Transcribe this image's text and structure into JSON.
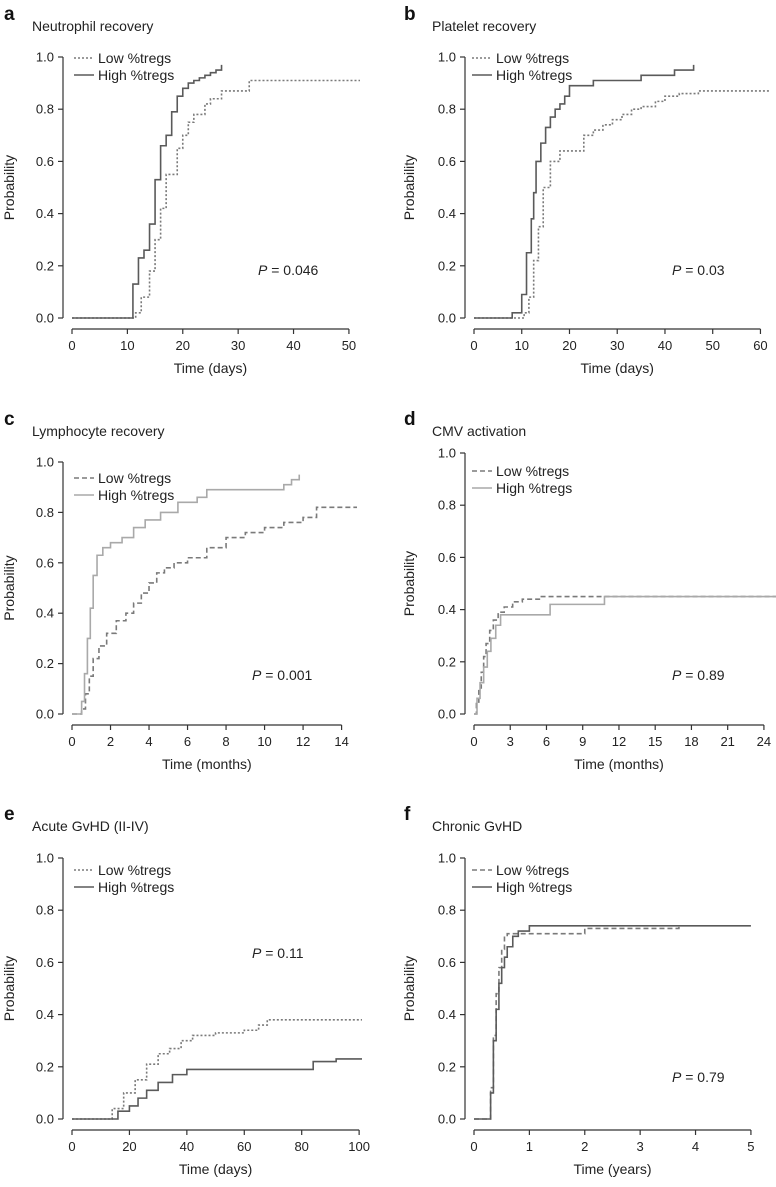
{
  "figure": {
    "y_axis_label": "Probability",
    "p_prefix": "P",
    "p_sep": " = "
  },
  "colors": {
    "low": "#7a7a7a",
    "high": "#5a5a5a",
    "high_light": "#a9a9a9",
    "axis": "#333333"
  },
  "chart_data": [
    {
      "letter": "a",
      "type": "line",
      "title": "Neutrophil recovery",
      "xlabel": "Time (days)",
      "ylabel": "Probability",
      "xlim": [
        0,
        52
      ],
      "ylim": [
        0,
        1
      ],
      "xticks": [
        0,
        10,
        20,
        30,
        40,
        50
      ],
      "yticks": [
        "0.0",
        "0.2",
        "0.4",
        "0.6",
        "0.8",
        "1.0"
      ],
      "p_value": "0.046",
      "series": [
        {
          "name": "Low %tregs",
          "style": "dotted",
          "color": "low",
          "x": [
            0,
            11.5,
            12.5,
            14,
            15,
            16,
            17,
            19,
            20,
            21,
            22,
            24,
            25,
            27,
            32,
            52
          ],
          "y": [
            0,
            0.02,
            0.08,
            0.18,
            0.3,
            0.42,
            0.55,
            0.65,
            0.7,
            0.75,
            0.78,
            0.82,
            0.84,
            0.87,
            0.91,
            0.91
          ]
        },
        {
          "name": "High %tregs",
          "style": "solid",
          "color": "high",
          "x": [
            0,
            11,
            12,
            13,
            14,
            15,
            16,
            17,
            18,
            19,
            20,
            21,
            22,
            23,
            24,
            25,
            26,
            27
          ],
          "y": [
            0,
            0.13,
            0.23,
            0.26,
            0.36,
            0.53,
            0.66,
            0.7,
            0.79,
            0.85,
            0.88,
            0.9,
            0.91,
            0.92,
            0.93,
            0.94,
            0.95,
            0.97
          ]
        }
      ]
    },
    {
      "letter": "b",
      "type": "line",
      "title": "Platelet recovery",
      "xlabel": "Time (days)",
      "ylabel": "Probability",
      "xlim": [
        0,
        62
      ],
      "ylim": [
        0,
        1
      ],
      "xticks": [
        0,
        10,
        20,
        30,
        40,
        50,
        60
      ],
      "yticks": [
        "0.0",
        "0.2",
        "0.4",
        "0.6",
        "0.8",
        "1.0"
      ],
      "p_value": "0.03",
      "series": [
        {
          "name": "Low %tregs",
          "style": "dotted",
          "color": "low",
          "x": [
            0,
            10.5,
            11.5,
            12.5,
            13.5,
            14.5,
            16,
            18,
            23,
            25,
            27,
            29,
            31,
            33,
            35,
            38,
            40,
            43,
            47,
            62
          ],
          "y": [
            0,
            0.02,
            0.08,
            0.22,
            0.35,
            0.5,
            0.6,
            0.64,
            0.7,
            0.72,
            0.74,
            0.76,
            0.78,
            0.8,
            0.81,
            0.83,
            0.85,
            0.86,
            0.87,
            0.87
          ]
        },
        {
          "name": "High %tregs",
          "style": "solid",
          "color": "high",
          "x": [
            0,
            8,
            10,
            11,
            12,
            12.5,
            13,
            14,
            15,
            16,
            17,
            18,
            19,
            20,
            25,
            35,
            42,
            46
          ],
          "y": [
            0,
            0.02,
            0.09,
            0.25,
            0.38,
            0.48,
            0.6,
            0.67,
            0.73,
            0.77,
            0.8,
            0.82,
            0.85,
            0.89,
            0.91,
            0.93,
            0.95,
            0.97
          ]
        }
      ]
    },
    {
      "letter": "c",
      "type": "line",
      "title": "Lymphocyte recovery",
      "xlabel": "Time (months)",
      "ylabel": "Probability",
      "xlim": [
        0,
        14.8
      ],
      "ylim": [
        0,
        1
      ],
      "xticks": [
        0,
        2,
        4,
        6,
        8,
        10,
        12,
        14
      ],
      "yticks": [
        "0.0",
        "0.2",
        "0.4",
        "0.6",
        "0.8",
        "1.0"
      ],
      "p_value": "0.001",
      "series": [
        {
          "name": "Low %tregs",
          "style": "dashed",
          "color": "low",
          "x": [
            0,
            0.5,
            0.7,
            0.9,
            1.1,
            1.4,
            1.8,
            2.3,
            2.8,
            3.2,
            3.6,
            4.0,
            4.4,
            4.8,
            5.3,
            6.0,
            7.0,
            8.0,
            9.0,
            10.0,
            11.0,
            12.0,
            12.7,
            14.8
          ],
          "y": [
            0,
            0.02,
            0.08,
            0.15,
            0.22,
            0.27,
            0.32,
            0.37,
            0.4,
            0.44,
            0.48,
            0.52,
            0.56,
            0.58,
            0.6,
            0.62,
            0.66,
            0.7,
            0.72,
            0.74,
            0.76,
            0.78,
            0.82,
            0.82
          ]
        },
        {
          "name": "High %tregs",
          "style": "solid",
          "color": "high_light",
          "x": [
            0,
            0.5,
            0.65,
            0.8,
            0.95,
            1.1,
            1.3,
            1.6,
            2.0,
            2.6,
            3.2,
            3.8,
            4.6,
            5.5,
            6.5,
            7.0,
            11.0,
            11.4,
            11.8
          ],
          "y": [
            0,
            0.05,
            0.16,
            0.3,
            0.42,
            0.55,
            0.63,
            0.66,
            0.68,
            0.7,
            0.74,
            0.77,
            0.8,
            0.84,
            0.86,
            0.89,
            0.91,
            0.93,
            0.95
          ]
        }
      ]
    },
    {
      "letter": "d",
      "type": "line",
      "title": "CMV activation",
      "xlabel": "Time (months)",
      "ylabel": "Probability",
      "xlim": [
        0,
        25
      ],
      "ylim": [
        0,
        1
      ],
      "xticks": [
        0,
        3,
        6,
        9,
        12,
        15,
        18,
        21,
        24
      ],
      "yticks": [
        "0.0",
        "0.2",
        "0.4",
        "0.6",
        "0.8",
        "1.0"
      ],
      "p_value": "0.89",
      "series": [
        {
          "name": "Low %tregs",
          "style": "dashed",
          "color": "low",
          "x": [
            0,
            0.2,
            0.4,
            0.6,
            0.8,
            1.0,
            1.3,
            1.6,
            2.0,
            2.5,
            3.2,
            4.0,
            5.5,
            25
          ],
          "y": [
            0,
            0.04,
            0.1,
            0.16,
            0.22,
            0.27,
            0.32,
            0.36,
            0.39,
            0.41,
            0.43,
            0.44,
            0.45,
            0.45
          ]
        },
        {
          "name": "High %tregs",
          "style": "solid",
          "color": "high_light",
          "x": [
            0,
            0.25,
            0.5,
            0.8,
            1.1,
            1.4,
            1.8,
            2.2,
            6.3,
            10.8,
            25
          ],
          "y": [
            0,
            0.06,
            0.12,
            0.18,
            0.24,
            0.29,
            0.34,
            0.38,
            0.42,
            0.45,
            0.45
          ]
        }
      ]
    },
    {
      "letter": "e",
      "type": "line",
      "title": "Acute GvHD (II-IV)",
      "xlabel": "Time (days)",
      "ylabel": "Probability",
      "xlim": [
        0,
        101
      ],
      "ylim": [
        0,
        1
      ],
      "xticks": [
        0,
        20,
        40,
        60,
        80,
        100
      ],
      "yticks": [
        "0.0",
        "0.2",
        "0.4",
        "0.6",
        "0.8",
        "1.0"
      ],
      "p_value": "0.11",
      "series": [
        {
          "name": "Low %tregs",
          "style": "dotted",
          "color": "low",
          "x": [
            0,
            14,
            18,
            22,
            26,
            30,
            34,
            38,
            42,
            50,
            60,
            65,
            68,
            101
          ],
          "y": [
            0,
            0.04,
            0.1,
            0.15,
            0.21,
            0.25,
            0.27,
            0.3,
            0.32,
            0.33,
            0.34,
            0.36,
            0.38,
            0.38
          ]
        },
        {
          "name": "High %tregs",
          "style": "solid",
          "color": "high",
          "x": [
            0,
            16,
            20,
            23,
            26,
            30,
            35,
            40,
            60,
            84,
            87,
            92,
            101
          ],
          "y": [
            0,
            0.03,
            0.05,
            0.08,
            0.11,
            0.14,
            0.17,
            0.19,
            0.19,
            0.22,
            0.22,
            0.23,
            0.23
          ]
        }
      ]
    },
    {
      "letter": "f",
      "type": "line",
      "title": "Chronic GvHD",
      "xlabel": "Time (years)",
      "ylabel": "Probability",
      "xlim": [
        0,
        5.2
      ],
      "ylim": [
        0,
        1
      ],
      "xticks": [
        0,
        1,
        2,
        3,
        4,
        5
      ],
      "yticks": [
        "0.0",
        "0.2",
        "0.4",
        "0.6",
        "0.8",
        "1.0"
      ],
      "p_value": "0.79",
      "series": [
        {
          "name": "Low %tregs",
          "style": "dashed",
          "color": "low",
          "x": [
            0,
            0.3,
            0.35,
            0.4,
            0.45,
            0.5,
            0.55,
            0.6,
            0.7,
            1.0,
            2.0,
            3.7
          ],
          "y": [
            0,
            0.12,
            0.32,
            0.48,
            0.58,
            0.65,
            0.7,
            0.71,
            0.71,
            0.71,
            0.73,
            0.74
          ]
        },
        {
          "name": "High %tregs",
          "style": "solid",
          "color": "high",
          "x": [
            0,
            0.3,
            0.35,
            0.4,
            0.45,
            0.5,
            0.55,
            0.6,
            0.7,
            0.8,
            1.0,
            5.0
          ],
          "y": [
            0,
            0.1,
            0.3,
            0.42,
            0.52,
            0.58,
            0.62,
            0.66,
            0.7,
            0.72,
            0.74,
            0.74
          ]
        }
      ]
    }
  ]
}
